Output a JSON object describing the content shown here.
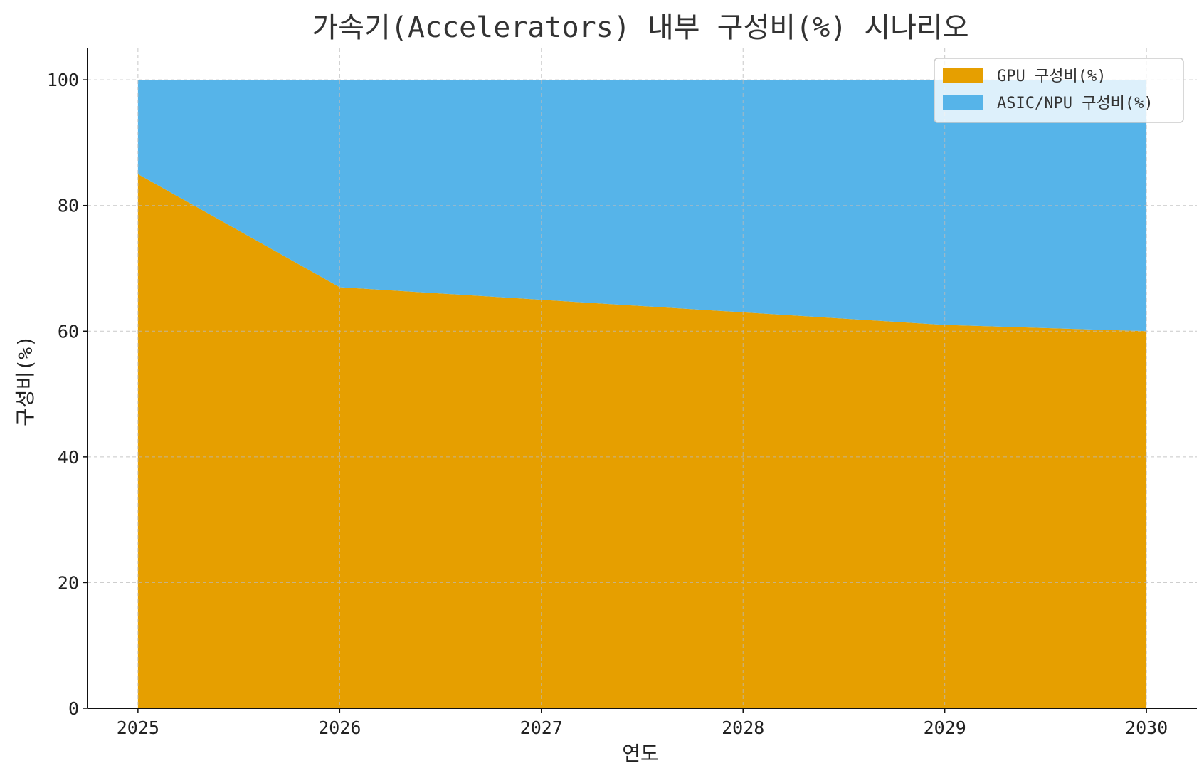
{
  "chart_data": {
    "type": "area",
    "stacked": true,
    "title": "가속기(Accelerators) 내부 구성비(%) 시나리오",
    "xlabel": "연도",
    "ylabel": "구성비(%)",
    "x": [
      2025,
      2026,
      2027,
      2028,
      2029,
      2030
    ],
    "x_tick_labels": [
      "2025",
      "2026",
      "2027",
      "2028",
      "2029",
      "2030"
    ],
    "y_ticks": [
      0,
      20,
      40,
      60,
      80,
      100
    ],
    "y_tick_labels": [
      "0",
      "20",
      "40",
      "60",
      "80",
      "100"
    ],
    "xlim": [
      2024.75,
      2030.25
    ],
    "ylim": [
      0,
      105
    ],
    "grid": true,
    "legend_position": "top-right",
    "series": [
      {
        "name": "GPU 구성비(%)",
        "values": [
          85,
          67,
          65,
          63,
          61,
          60
        ],
        "color": "#E69F00"
      },
      {
        "name": "ASIC/NPU 구성비(%)",
        "values": [
          15,
          33,
          35,
          37,
          39,
          40
        ],
        "color": "#56B4E9"
      }
    ]
  }
}
